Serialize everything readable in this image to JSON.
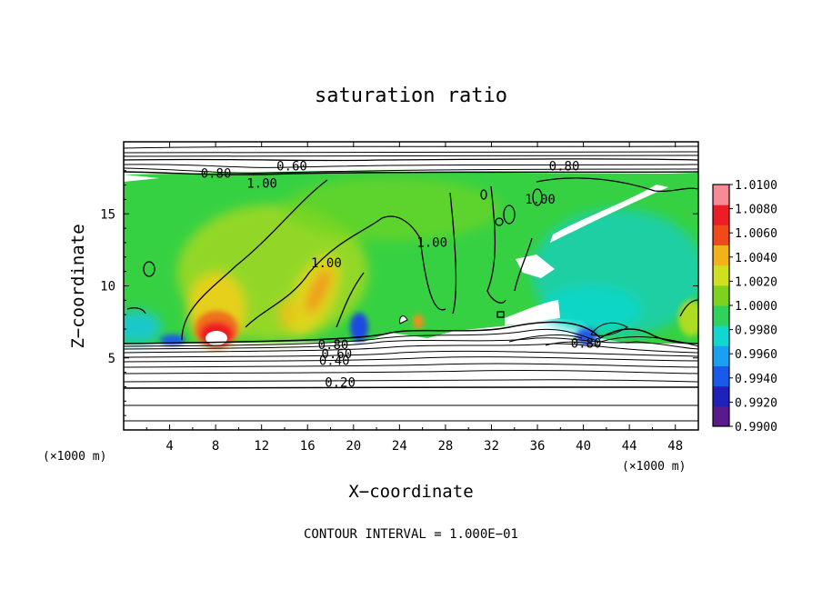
{
  "chart_data": {
    "type": "heatmap",
    "title": "saturation ratio",
    "xlabel": "X−coordinate",
    "ylabel": "Z−coordinate",
    "x_unit": "(×1000 m)",
    "y_unit": "(×1000 m)",
    "xlim": [
      0,
      50
    ],
    "ylim": [
      0,
      20
    ],
    "x_ticks": [
      4,
      8,
      12,
      16,
      20,
      24,
      28,
      32,
      36,
      40,
      44,
      48
    ],
    "x_tick_labels": [
      "4",
      "8",
      "12",
      "16",
      "20",
      "24",
      "28",
      "32",
      "36",
      "40",
      "44",
      "48"
    ],
    "y_ticks": [
      5,
      10,
      15
    ],
    "y_tick_labels": [
      "5",
      "10",
      "15"
    ],
    "contour_interval_text": "CONTOUR INTERVAL = 1.000E−01",
    "colorbar": {
      "range": [
        0.99,
        1.01
      ],
      "levels": [
        0.99,
        0.992,
        0.994,
        0.996,
        0.998,
        1.0,
        1.002,
        1.004,
        1.006,
        1.008,
        1.01
      ],
      "labels": [
        "0.9900",
        "0.9920",
        "0.9940",
        "0.9960",
        "0.9980",
        "1.0000",
        "1.0020",
        "1.0040",
        "1.0060",
        "1.0080",
        "1.0100"
      ],
      "colors": [
        "#5a1a8c",
        "#1e22b8",
        "#1a5ae8",
        "#1aa0f0",
        "#10d8cf",
        "#2fd25a",
        "#7ed21e",
        "#cfe01e",
        "#f2b21a",
        "#f04a1a",
        "#ee1c24",
        "#f88a96"
      ]
    },
    "contour_labels": [
      {
        "text": "0.60",
        "x": 13.3,
        "y": 18.0
      },
      {
        "text": "0.80",
        "x": 6.7,
        "y": 17.5
      },
      {
        "text": "1.00",
        "x": 10.7,
        "y": 16.8
      },
      {
        "text": "0.80",
        "x": 37.0,
        "y": 18.0
      },
      {
        "text": "1.00",
        "x": 34.9,
        "y": 15.7
      },
      {
        "text": "1.00",
        "x": 16.3,
        "y": 11.3
      },
      {
        "text": "1.00",
        "x": 25.5,
        "y": 12.7
      },
      {
        "text": "0.80",
        "x": 16.9,
        "y": 5.6
      },
      {
        "text": "0.60",
        "x": 17.2,
        "y": 5.0
      },
      {
        "text": "0.40",
        "x": 17.0,
        "y": 4.5
      },
      {
        "text": "0.20",
        "x": 17.5,
        "y": 3.0
      },
      {
        "text": "0.80",
        "x": 38.9,
        "y": 5.7
      }
    ]
  }
}
